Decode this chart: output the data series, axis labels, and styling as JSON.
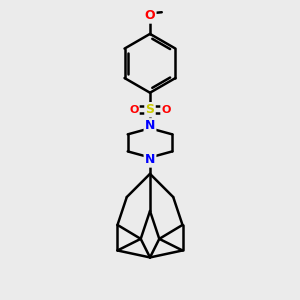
{
  "bg_color": "#ebebeb",
  "bond_color": "#000000",
  "bond_width": 1.8,
  "atom_colors": {
    "N": "#0000ff",
    "O": "#ff0000",
    "S": "#cccc00",
    "C": "#000000"
  },
  "figsize": [
    3.0,
    3.0
  ],
  "dpi": 100
}
